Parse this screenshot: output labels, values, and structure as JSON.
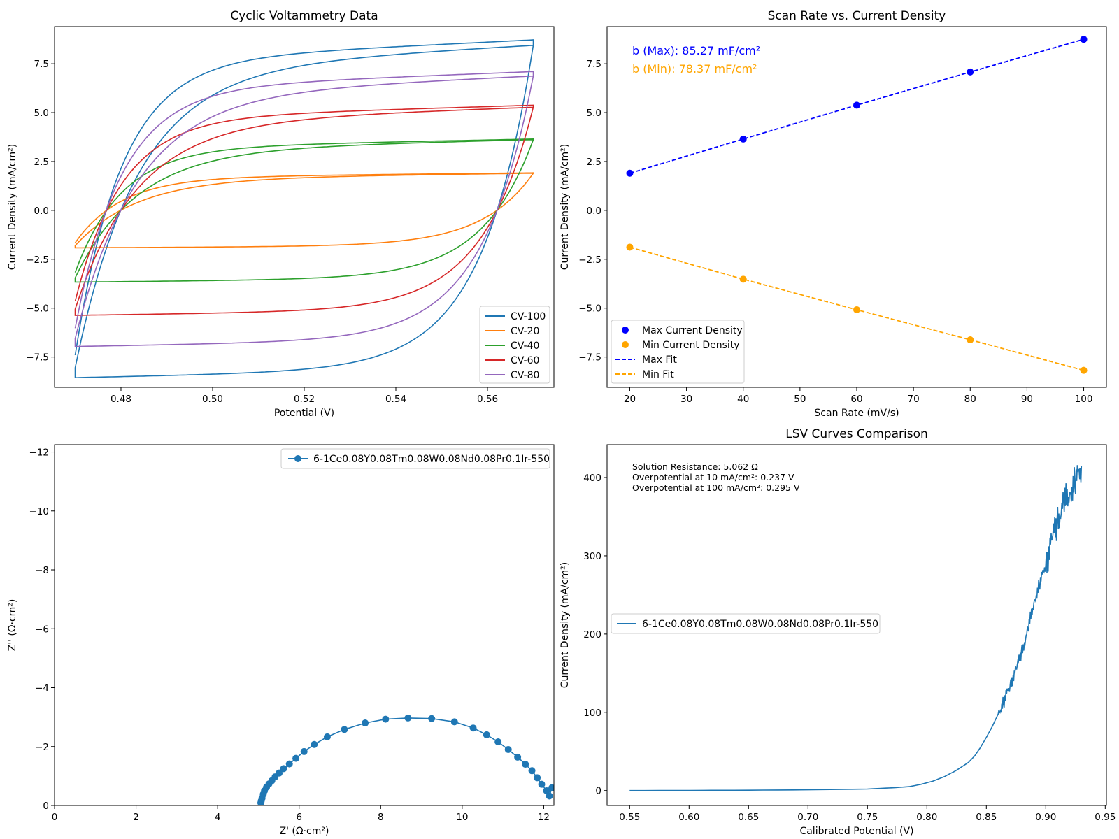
{
  "chart_data": [
    {
      "type": "line",
      "title": "Cyclic Voltammetry Data",
      "xlabel": "Potential (V)",
      "ylabel": "Current Density (mA/cm²)",
      "xlim": [
        0.4655,
        0.5745
      ],
      "ylim": [
        -9.05,
        9.4
      ],
      "xticks": [
        0.48,
        0.5,
        0.52,
        0.54,
        0.56
      ],
      "xtick_labels": [
        "0.48",
        "0.50",
        "0.52",
        "0.54",
        "0.56"
      ],
      "yticks": [
        -7.5,
        -5.0,
        -2.5,
        0.0,
        2.5,
        5.0,
        7.5
      ],
      "ytick_labels": [
        "−7.5",
        "−5.0",
        "−2.5",
        "0.0",
        "2.5",
        "5.0",
        "7.5"
      ],
      "grid": false,
      "legend_position": "lower-right",
      "potential_window": [
        0.47,
        0.57
      ],
      "series": [
        {
          "name": "CV-100",
          "color": "#1f77b4",
          "scan_rate": 100,
          "plateau_anodic": 8.45,
          "plateau_cathodic": -8.05,
          "first_cycle_anodic_end": 8.72
        },
        {
          "name": "CV-20",
          "color": "#ff7f0e",
          "scan_rate": 20,
          "plateau_anodic": 1.9,
          "plateau_cathodic": -1.8,
          "first_cycle_anodic_end": 1.92
        },
        {
          "name": "CV-40",
          "color": "#2ca02c",
          "scan_rate": 40,
          "plateau_anodic": 3.62,
          "plateau_cathodic": -3.45,
          "first_cycle_anodic_end": 3.65
        },
        {
          "name": "CV-60",
          "color": "#d62728",
          "scan_rate": 60,
          "plateau_anodic": 5.28,
          "plateau_cathodic": -5.05,
          "first_cycle_anodic_end": 5.38
        },
        {
          "name": "CV-80",
          "color": "#9467bd",
          "scan_rate": 80,
          "plateau_anodic": 6.88,
          "plateau_cathodic": -6.55,
          "first_cycle_anodic_end": 7.1
        }
      ]
    },
    {
      "type": "scatter",
      "title": "Scan Rate vs. Current Density",
      "xlabel": "Scan Rate (mV/s)",
      "ylabel": "Current Density (mA/cm²)",
      "xlim": [
        16,
        104
      ],
      "ylim": [
        -9.05,
        9.4
      ],
      "xticks": [
        20,
        30,
        40,
        50,
        60,
        70,
        80,
        90,
        100
      ],
      "xtick_labels": [
        "20",
        "30",
        "40",
        "50",
        "60",
        "70",
        "80",
        "90",
        "100"
      ],
      "yticks": [
        -7.5,
        -5.0,
        -2.5,
        0.0,
        2.5,
        5.0,
        7.5
      ],
      "ytick_labels": [
        "−7.5",
        "−5.0",
        "−2.5",
        "0.0",
        "2.5",
        "5.0",
        "7.5"
      ],
      "grid": false,
      "legend_position": "lower-left",
      "annotations": [
        {
          "text": "b (Max): 85.27 mF/cm²",
          "color": "#0000ff"
        },
        {
          "text": "b (Min): 78.37 mF/cm²",
          "color": "#ffa500"
        }
      ],
      "x": [
        20,
        40,
        60,
        80,
        100
      ],
      "series": [
        {
          "name": "Max Current Density",
          "color": "#0000ff",
          "values": [
            1.9,
            3.65,
            5.38,
            7.08,
            8.75
          ]
        },
        {
          "name": "Min Current Density",
          "color": "#ffa500",
          "values": [
            -1.88,
            -3.52,
            -5.08,
            -6.62,
            -8.18
          ]
        },
        {
          "name": "Max Fit",
          "color": "#0000ff",
          "style": "dashed",
          "values": [
            1.9,
            3.65,
            5.38,
            7.08,
            8.75
          ]
        },
        {
          "name": "Min Fit",
          "color": "#ffa500",
          "style": "dashed",
          "values": [
            -1.88,
            -3.52,
            -5.08,
            -6.62,
            -8.18
          ]
        }
      ]
    },
    {
      "type": "line",
      "title": "",
      "xlabel": "Z' (Ω·cm²)",
      "ylabel": "Z'' (Ω·cm²)",
      "xlim": [
        0,
        12.25
      ],
      "ylim": [
        0,
        -12.25
      ],
      "y_inverted": true,
      "xticks": [
        0,
        2,
        4,
        6,
        8,
        10,
        12
      ],
      "xtick_labels": [
        "0",
        "2",
        "4",
        "6",
        "8",
        "10",
        "12"
      ],
      "yticks": [
        0,
        -2,
        -4,
        -6,
        -8,
        -10,
        -12
      ],
      "ytick_labels": [
        "0",
        "−2",
        "−4",
        "−6",
        "−8",
        "−10",
        "−12"
      ],
      "grid": false,
      "legend_position": "top-right",
      "series": [
        {
          "name": "6-1Ce0.08Y0.08Tm0.08W0.08Nd0.08Pr0.1Ir-550",
          "color": "#1f77b4",
          "x": [
            5.06,
            5.07,
            5.09,
            5.12,
            5.15,
            5.2,
            5.26,
            5.33,
            5.41,
            5.51,
            5.62,
            5.76,
            5.92,
            6.12,
            6.37,
            6.69,
            7.11,
            7.62,
            8.12,
            8.67,
            9.25,
            9.81,
            10.27,
            10.6,
            10.88,
            11.13,
            11.36,
            11.55,
            11.71,
            11.84,
            11.95,
            12.07,
            12.14,
            12.2
          ],
          "y": [
            -0.09,
            -0.15,
            -0.25,
            -0.38,
            -0.5,
            -0.62,
            -0.73,
            -0.84,
            -0.97,
            -1.1,
            -1.25,
            -1.41,
            -1.6,
            -1.83,
            -2.07,
            -2.33,
            -2.58,
            -2.8,
            -2.93,
            -2.97,
            -2.95,
            -2.84,
            -2.63,
            -2.4,
            -2.16,
            -1.9,
            -1.64,
            -1.4,
            -1.18,
            -0.94,
            -0.72,
            -0.5,
            -0.32,
            -0.6
          ]
        }
      ]
    },
    {
      "type": "line",
      "title": "LSV Curves Comparison",
      "xlabel": "Calibrated Potential (V)",
      "ylabel": "Current Density (mA/cm²)",
      "xlim": [
        0.531,
        0.951
      ],
      "ylim": [
        -19,
        442
      ],
      "xticks": [
        0.55,
        0.6,
        0.65,
        0.7,
        0.75,
        0.8,
        0.85,
        0.9,
        0.95
      ],
      "xtick_labels": [
        "0.55",
        "0.60",
        "0.65",
        "0.70",
        "0.75",
        "0.80",
        "0.85",
        "0.90",
        "0.95"
      ],
      "yticks": [
        0,
        100,
        200,
        300,
        400
      ],
      "ytick_labels": [
        "0",
        "100",
        "200",
        "300",
        "400"
      ],
      "grid": false,
      "legend_position": "center-left",
      "annotations": [
        {
          "text": "Solution Resistance: 5.062 Ω"
        },
        {
          "text": "Overpotential at 10 mA/cm²: 0.237 V"
        },
        {
          "text": "Overpotential at 100 mA/cm²: 0.295 V"
        }
      ],
      "series": [
        {
          "name": "6-1Ce0.08Y0.08Tm0.08W0.08Nd0.08Pr0.1Ir-550",
          "color": "#1f77b4",
          "x": [
            0.55,
            0.6,
            0.65,
            0.7,
            0.75,
            0.77,
            0.785,
            0.795,
            0.805,
            0.815,
            0.825,
            0.835,
            0.84,
            0.845,
            0.85,
            0.855,
            0.86,
            0.865,
            0.87,
            0.875,
            0.88,
            0.885,
            0.89,
            0.895,
            0.9,
            0.905,
            0.91,
            0.915,
            0.92,
            0.925,
            0.93
          ],
          "y": [
            0,
            0.2,
            0.5,
            1,
            2,
            3.5,
            5,
            8,
            12,
            18,
            26,
            36,
            44,
            55,
            68,
            82,
            98,
            115,
            135,
            155,
            178,
            205,
            240,
            265,
            290,
            320,
            345,
            365,
            380,
            395,
            415
          ]
        }
      ]
    }
  ]
}
